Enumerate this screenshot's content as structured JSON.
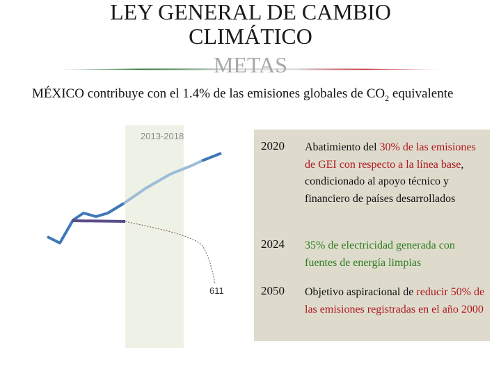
{
  "header": {
    "title_line1": "LEY GENERAL DE CAMBIO",
    "title_line2": "CLIMÁTICO",
    "title_line3": "METAS"
  },
  "subtitle": {
    "text": "MÉXICO contribuye con el 1.4% de las emisiones globales de CO",
    "subscript": "2",
    "suffix": " equivalente"
  },
  "colors": {
    "flag_green": "#1f6b2e",
    "flag_red": "#c21f2f",
    "panel_bg": "#dedbcd",
    "period_bg": "#eef2e6",
    "highlight_red": "#b0171f",
    "highlight_green": "#2e7d1f",
    "line_dark_blue": "#3f78b8",
    "line_light_blue": "#9dbcd8",
    "line_purple": "#5b4d87"
  },
  "chart": {
    "period_label": "2013-2018",
    "marker_label": "611"
  },
  "goals": [
    {
      "year": "2020",
      "parts": [
        {
          "text": "Abatimiento del ",
          "style": "normal"
        },
        {
          "text": "30% de las emisiones de GEI con respecto a la línea base",
          "style": "red"
        },
        {
          "text": ", condicionado al apoyo técnico y financiero de países desarrollados",
          "style": "normal"
        }
      ]
    },
    {
      "year": "2024",
      "parts": [
        {
          "text": "35% de electricidad generada con fuentes de energía limpias",
          "style": "green"
        }
      ]
    },
    {
      "year": "2050",
      "parts": [
        {
          "text": "Objetivo aspiracional de ",
          "style": "normal"
        },
        {
          "text": "reducir 50% de las emisiones registradas en el año 2000",
          "style": "red"
        }
      ]
    }
  ]
}
